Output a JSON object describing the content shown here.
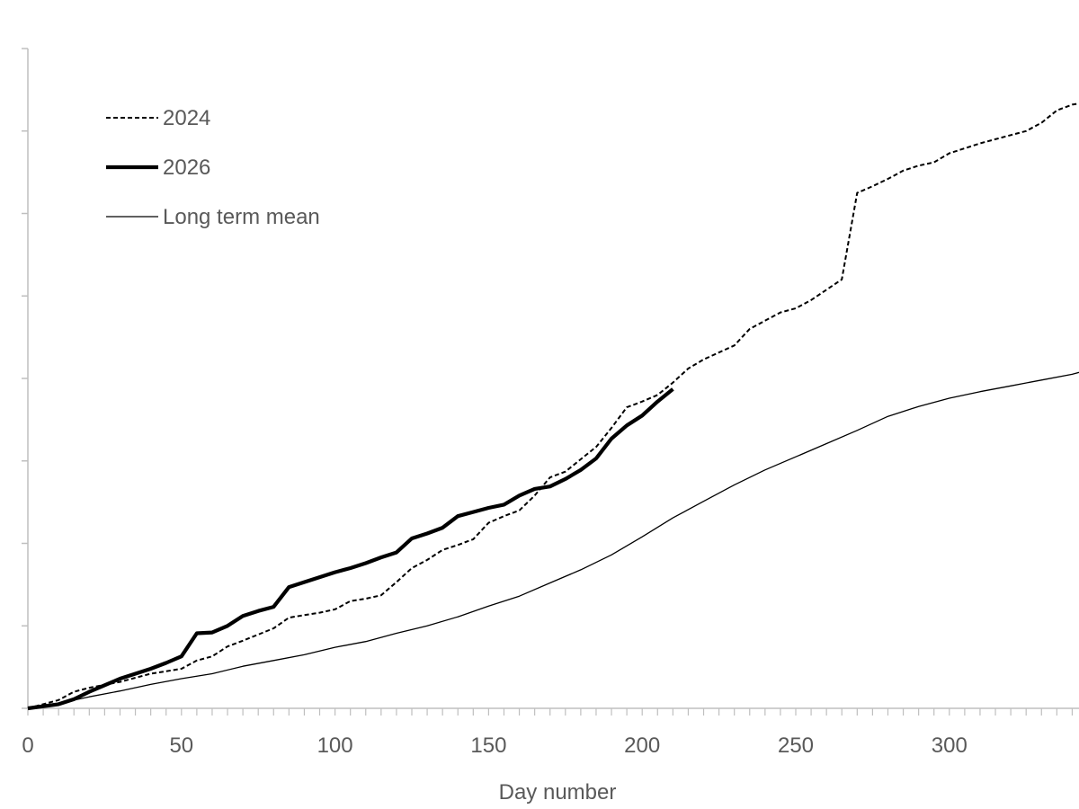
{
  "chart_data": {
    "type": "line",
    "xlabel": "Day number",
    "ylabel": "",
    "xlim": [
      0,
      345
    ],
    "ylim": [
      0,
      800
    ],
    "x_ticks": [
      0,
      50,
      100,
      150,
      200,
      250,
      300
    ],
    "y_ticks": [
      0,
      100,
      200,
      300,
      400,
      500,
      600,
      700,
      800
    ],
    "grid": false,
    "legend_position": "top-left",
    "series": [
      {
        "name": "2024",
        "style": "dashed",
        "color": "#000000",
        "x": [
          0,
          10,
          15,
          20,
          30,
          40,
          50,
          55,
          60,
          65,
          70,
          80,
          85,
          90,
          95,
          100,
          105,
          110,
          115,
          120,
          125,
          130,
          135,
          140,
          145,
          150,
          155,
          160,
          165,
          170,
          175,
          180,
          185,
          190,
          195,
          200,
          205,
          210,
          215,
          220,
          230,
          235,
          245,
          250,
          255,
          265,
          270,
          275,
          280,
          285,
          290,
          295,
          300,
          310,
          315,
          320,
          325,
          330,
          335,
          340,
          345
        ],
        "y": [
          0,
          10,
          20,
          25,
          32,
          42,
          48,
          58,
          63,
          75,
          82,
          97,
          110,
          113,
          116,
          120,
          130,
          133,
          137,
          153,
          170,
          180,
          192,
          198,
          205,
          225,
          233,
          240,
          258,
          280,
          287,
          302,
          317,
          340,
          365,
          372,
          380,
          395,
          412,
          423,
          440,
          460,
          480,
          485,
          495,
          520,
          625,
          633,
          642,
          652,
          658,
          662,
          673,
          685,
          690,
          695,
          700,
          710,
          725,
          732,
          735
        ]
      },
      {
        "name": "2026",
        "style": "solid-thick",
        "color": "#000000",
        "x": [
          0,
          10,
          15,
          20,
          25,
          30,
          35,
          40,
          45,
          50,
          55,
          60,
          65,
          70,
          75,
          80,
          85,
          90,
          95,
          100,
          105,
          110,
          115,
          120,
          125,
          130,
          135,
          140,
          145,
          150,
          155,
          160,
          165,
          170,
          175,
          180,
          185,
          190,
          195,
          200,
          205,
          210
        ],
        "y": [
          0,
          5,
          11,
          20,
          28,
          36,
          42,
          48,
          55,
          63,
          91,
          92,
          100,
          112,
          118,
          123,
          147,
          153,
          159,
          165,
          170,
          176,
          183,
          189,
          206,
          212,
          219,
          233,
          238,
          243,
          247,
          258,
          266,
          269,
          278,
          289,
          303,
          327,
          343,
          355,
          372,
          387
        ]
      },
      {
        "name": "Long term mean",
        "style": "solid-thin",
        "color": "#000000",
        "x": [
          0,
          10,
          20,
          30,
          40,
          50,
          60,
          70,
          80,
          90,
          100,
          110,
          120,
          130,
          140,
          150,
          160,
          170,
          180,
          190,
          200,
          210,
          220,
          230,
          240,
          250,
          260,
          270,
          280,
          290,
          300,
          310,
          320,
          330,
          340,
          345
        ],
        "y": [
          0,
          6,
          14,
          21,
          29,
          36,
          42,
          51,
          58,
          65,
          74,
          81,
          91,
          100,
          111,
          124,
          136,
          152,
          168,
          186,
          208,
          231,
          251,
          271,
          289,
          305,
          321,
          337,
          354,
          366,
          376,
          384,
          391,
          398,
          405,
          410
        ]
      }
    ]
  }
}
